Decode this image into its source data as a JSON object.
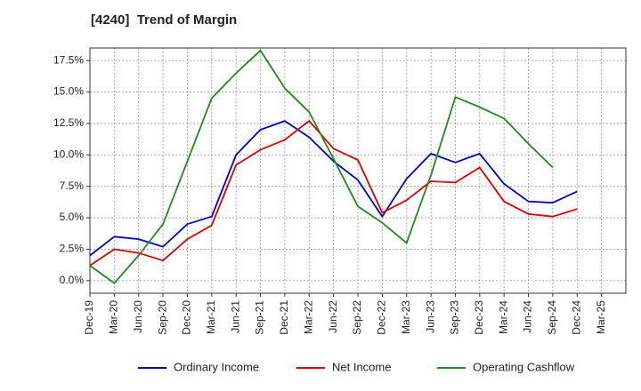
{
  "chart_data": {
    "type": "line",
    "title": "[4240]  Trend of Margin",
    "xlabel": "",
    "ylabel": "",
    "x": [
      "Dec-19",
      "Mar-20",
      "Jun-20",
      "Sep-20",
      "Dec-20",
      "Mar-21",
      "Jun-21",
      "Sep-21",
      "Dec-21",
      "Mar-22",
      "Jun-22",
      "Sep-22",
      "Dec-22",
      "Mar-23",
      "Jun-23",
      "Sep-23",
      "Dec-23",
      "Mar-24",
      "Jun-24",
      "Sep-24",
      "Dec-24",
      "Mar-25"
    ],
    "ylim": [
      -1.0,
      18.5
    ],
    "yticks": [
      0.0,
      2.5,
      5.0,
      7.5,
      10.0,
      12.5,
      15.0,
      17.5
    ],
    "ytick_labels": [
      "0.0%",
      "2.5%",
      "5.0%",
      "7.5%",
      "10.0%",
      "12.5%",
      "15.0%",
      "17.5%"
    ],
    "grid": true,
    "legend_position": "bottom",
    "series": [
      {
        "name": "Ordinary Income",
        "color": "#0000cc",
        "values": [
          2.0,
          3.5,
          3.3,
          2.7,
          4.5,
          5.1,
          10.0,
          12.0,
          12.7,
          11.4,
          9.5,
          8.0,
          5.1,
          8.1,
          10.1,
          9.4,
          10.1,
          7.7,
          6.3,
          6.2,
          7.1,
          null
        ]
      },
      {
        "name": "Net Income",
        "color": "#dd0000",
        "values": [
          1.2,
          2.5,
          2.2,
          1.6,
          3.3,
          4.4,
          9.2,
          10.4,
          11.2,
          12.7,
          10.5,
          9.6,
          5.4,
          6.4,
          7.9,
          7.8,
          9.0,
          6.3,
          5.3,
          5.1,
          5.7,
          null
        ]
      },
      {
        "name": "Operating Cashflow",
        "color": "#228822",
        "values": [
          1.2,
          -0.2,
          2.0,
          4.5,
          9.5,
          14.5,
          16.5,
          18.3,
          15.3,
          13.4,
          9.7,
          5.9,
          4.6,
          3.0,
          8.4,
          14.6,
          13.8,
          12.9,
          10.9,
          9.0,
          null,
          null
        ]
      }
    ]
  }
}
